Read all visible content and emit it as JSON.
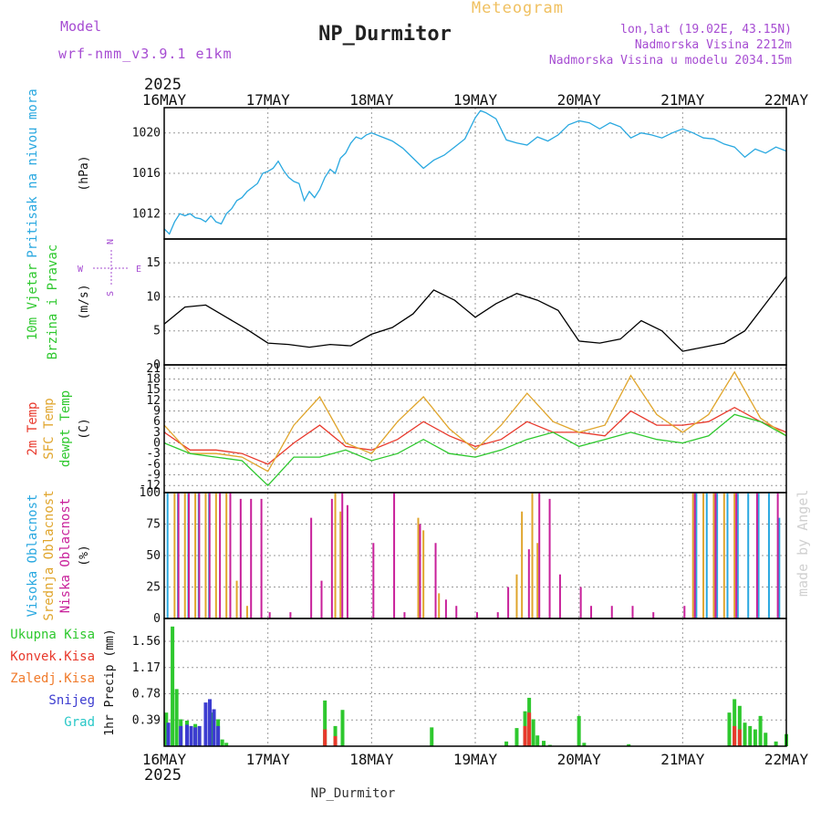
{
  "header": {
    "model_label": "Model",
    "model_name": "wrf-nmm_v3.9.1 e1km",
    "title": "NP_Durmitor",
    "subtitle": "Meteogram",
    "lonlat": "lon,lat (19.02E, 43.15N)",
    "altitude": "Nadmorska Visina 2212m",
    "model_altitude": "Nadmorska Visina u modelu 2034.15m",
    "year_top": "2025",
    "year_bottom": "2025",
    "footer": "NP_Durmitor",
    "watermark": "made by Angel"
  },
  "colors": {
    "pressure": "#29a8e0",
    "temp2m": "#e8392c",
    "sfc": "#e0a52c",
    "dewpt": "#2ec82e",
    "high_cloud": "#29a8e0",
    "mid_cloud": "#e0a52c",
    "low_cloud": "#c8209a",
    "total_rain": "#2ec82e",
    "conv_rain": "#e8392c",
    "frz_rain": "#f07a2a",
    "snow": "#3c3cd0",
    "graupel": "#29c8c8",
    "purple_text": "#a64cd2",
    "orange_text": "#f0c060"
  },
  "chart_data": {
    "type": "meteogram",
    "x_ticks": [
      "16MAY",
      "17MAY",
      "18MAY",
      "19MAY",
      "20MAY",
      "21MAY",
      "22MAY"
    ],
    "panels": [
      {
        "id": "pressure",
        "ylabel_lines": [
          "Pritisak na nivou mora"
        ],
        "unit": "(hPa)",
        "yticks": [
          1012,
          1016,
          1020
        ],
        "ylim": [
          1009.5,
          1022.5
        ],
        "series": [
          {
            "name": "Pritisak na nivou mora",
            "color": "#29a8e0",
            "x": [
              0,
              0.05,
              0.1,
              0.15,
              0.2,
              0.25,
              0.3,
              0.35,
              0.4,
              0.45,
              0.5,
              0.55,
              0.6,
              0.65,
              0.7,
              0.75,
              0.8,
              0.85,
              0.9,
              0.95,
              1.0,
              1.05,
              1.1,
              1.15,
              1.2,
              1.25,
              1.3,
              1.35,
              1.4,
              1.45,
              1.5,
              1.55,
              1.6,
              1.65,
              1.7,
              1.75,
              1.8,
              1.85,
              1.9,
              1.95,
              2.0,
              2.1,
              2.2,
              2.3,
              2.4,
              2.5,
              2.6,
              2.7,
              2.8,
              2.9,
              3.0,
              3.05,
              3.1,
              3.2,
              3.3,
              3.4,
              3.5,
              3.6,
              3.7,
              3.8,
              3.9,
              4.0,
              4.1,
              4.2,
              4.3,
              4.4,
              4.5,
              4.6,
              4.7,
              4.8,
              4.9,
              5.0,
              5.1,
              5.2,
              5.3,
              5.4,
              5.5,
              5.6,
              5.7,
              5.8,
              5.9,
              6.0
            ],
            "y": [
              1010.5,
              1010.0,
              1011.2,
              1012.0,
              1011.8,
              1012.0,
              1011.6,
              1011.5,
              1011.2,
              1011.8,
              1011.2,
              1011.0,
              1012.0,
              1012.5,
              1013.3,
              1013.6,
              1014.2,
              1014.6,
              1015.0,
              1016.0,
              1016.2,
              1016.5,
              1017.2,
              1016.3,
              1015.6,
              1015.2,
              1015.0,
              1013.3,
              1014.2,
              1013.6,
              1014.4,
              1015.6,
              1016.4,
              1016.0,
              1017.5,
              1018.0,
              1019.0,
              1019.6,
              1019.4,
              1019.8,
              1020.0,
              1019.6,
              1019.2,
              1018.5,
              1017.5,
              1016.5,
              1017.3,
              1017.8,
              1018.6,
              1019.4,
              1021.5,
              1022.2,
              1022.0,
              1021.4,
              1019.3,
              1019.0,
              1018.8,
              1019.6,
              1019.2,
              1019.8,
              1020.8,
              1021.2,
              1021.0,
              1020.4,
              1021.0,
              1020.6,
              1019.5,
              1020.0,
              1019.8,
              1019.5,
              1020.0,
              1020.4,
              1020.0,
              1019.5,
              1019.4,
              1018.9,
              1018.6,
              1017.6,
              1018.4,
              1018.0,
              1018.6,
              1018.2
            ]
          }
        ]
      },
      {
        "id": "wind",
        "ylabel_lines": [
          "10m Vjetar",
          "Brzina i Pravac"
        ],
        "unit": "(m/s)",
        "compass": {
          "n": "N",
          "s": "S",
          "w": "W",
          "e": "E"
        },
        "yticks": [
          0,
          5,
          10,
          15
        ],
        "ylim": [
          0,
          18.5
        ],
        "series": [
          {
            "name": "10m Vjetar",
            "color": "#000000",
            "x": [
              0,
              0.2,
              0.4,
              0.6,
              0.8,
              1.0,
              1.2,
              1.4,
              1.6,
              1.8,
              2.0,
              2.2,
              2.4,
              2.6,
              2.8,
              3.0,
              3.2,
              3.4,
              3.6,
              3.8,
              4.0,
              4.2,
              4.4,
              4.6,
              4.8,
              5.0,
              5.2,
              5.4,
              5.6,
              5.8,
              6.0
            ],
            "y": [
              6.0,
              8.5,
              8.8,
              7.0,
              5.2,
              3.2,
              3.0,
              2.6,
              3.0,
              2.8,
              4.5,
              5.5,
              7.5,
              11.0,
              9.5,
              7.0,
              9.0,
              10.5,
              9.5,
              8.0,
              3.5,
              3.2,
              3.8,
              6.5,
              5.0,
              2.0,
              2.6,
              3.2,
              5.0,
              9.0,
              13.0
            ]
          }
        ]
      },
      {
        "id": "temp",
        "ylabel_lines": [
          "2m Temp",
          "SFC Temp",
          "dewpt Temp"
        ],
        "unit": "(C)",
        "yticks": [
          -12,
          -9,
          -6,
          -3,
          0,
          3,
          6,
          9,
          12,
          15,
          18,
          21
        ],
        "ylim": [
          -14,
          22
        ],
        "series": [
          {
            "name": "2m Temp",
            "color": "#e8392c",
            "x": [
              0,
              0.25,
              0.5,
              0.75,
              1.0,
              1.25,
              1.5,
              1.75,
              2.0,
              2.25,
              2.5,
              2.75,
              3.0,
              3.25,
              3.5,
              3.75,
              4.0,
              4.25,
              4.5,
              4.75,
              5.0,
              5.25,
              5.5,
              5.75,
              6.0
            ],
            "y": [
              3,
              -2,
              -2,
              -3,
              -6,
              0,
              5,
              -1,
              -2,
              1,
              6,
              2,
              -1,
              1,
              6,
              3,
              3,
              2,
              9,
              5,
              5,
              6,
              10,
              6,
              3
            ]
          },
          {
            "name": "SFC Temp",
            "color": "#e0a52c",
            "x": [
              0,
              0.25,
              0.5,
              0.75,
              1.0,
              1.25,
              1.5,
              1.75,
              2.0,
              2.25,
              2.5,
              2.75,
              3.0,
              3.25,
              3.5,
              3.75,
              4.0,
              4.25,
              4.5,
              4.75,
              5.0,
              5.25,
              5.5,
              5.75,
              6.0
            ],
            "y": [
              5,
              -3,
              -3,
              -4,
              -8,
              5,
              13,
              0,
              -3,
              6,
              13,
              4,
              -2,
              5,
              14,
              6,
              3,
              5,
              19,
              8,
              3,
              8,
              20,
              7,
              2
            ]
          },
          {
            "name": "dewpt Temp",
            "color": "#2ec82e",
            "x": [
              0,
              0.25,
              0.5,
              0.75,
              1.0,
              1.25,
              1.5,
              1.75,
              2.0,
              2.25,
              2.5,
              2.75,
              3.0,
              3.25,
              3.5,
              3.75,
              4.0,
              4.25,
              4.5,
              4.75,
              5.0,
              5.25,
              5.5,
              5.75,
              6.0
            ],
            "y": [
              0,
              -3,
              -4,
              -5,
              -12,
              -4,
              -4,
              -2,
              -5,
              -3,
              1,
              -3,
              -4,
              -2,
              1,
              3,
              -1,
              1,
              3,
              1,
              0,
              2,
              8,
              6,
              2
            ]
          }
        ]
      },
      {
        "id": "cloud",
        "ylabel_lines": [
          "Visoka Oblacnost",
          "Srednja Oblacnost",
          "Niska Oblacnost"
        ],
        "unit": "(%)",
        "yticks": [
          0,
          25,
          50,
          75,
          100
        ],
        "ylim": [
          0,
          100
        ],
        "series": [
          {
            "name": "Visoka Oblacnost",
            "color": "#29a8e0",
            "x": [
              0.05,
              0.15,
              0.25,
              0.35,
              0.45,
              5.15,
              5.25,
              5.35,
              5.45,
              5.55,
              5.65,
              5.75,
              5.85,
              5.95
            ],
            "y": [
              100,
              100,
              100,
              100,
              100,
              100,
              100,
              100,
              100,
              100,
              100,
              100,
              100,
              80
            ]
          },
          {
            "name": "Srednja Oblacnost",
            "color": "#e0a52c",
            "x": [
              0.1,
              0.2,
              0.3,
              0.4,
              0.5,
              0.6,
              0.7,
              0.8,
              1.65,
              1.7,
              2.45,
              2.5,
              2.65,
              3.4,
              3.45,
              3.55,
              3.6,
              5.1,
              5.2,
              5.3,
              5.4,
              5.5
            ],
            "y": [
              100,
              100,
              100,
              100,
              100,
              100,
              30,
              10,
              100,
              85,
              80,
              70,
              20,
              35,
              85,
              100,
              60,
              100,
              100,
              100,
              100,
              100
            ]
          },
          {
            "name": "Niska Oblacnost",
            "color": "#c8209a",
            "x": [
              0.12,
              0.22,
              0.32,
              0.42,
              0.52,
              0.62,
              0.72,
              0.82,
              0.92,
              1.0,
              1.2,
              1.4,
              1.5,
              1.6,
              1.7,
              1.75,
              2.0,
              2.2,
              2.3,
              2.45,
              2.6,
              2.7,
              2.8,
              3.0,
              3.2,
              3.3,
              3.5,
              3.6,
              3.7,
              3.8,
              4.0,
              4.1,
              4.3,
              4.5,
              4.7,
              5.0,
              5.1,
              5.3,
              5.5,
              5.7,
              5.9
            ],
            "y": [
              100,
              100,
              100,
              100,
              100,
              100,
              95,
              95,
              95,
              5,
              5,
              80,
              30,
              95,
              100,
              90,
              60,
              100,
              5,
              75,
              60,
              15,
              10,
              5,
              5,
              25,
              55,
              100,
              95,
              35,
              25,
              10,
              10,
              10,
              5,
              10,
              100,
              100,
              100,
              100,
              100
            ]
          }
        ]
      },
      {
        "id": "precip",
        "legend": [
          "Ukupna Kisa",
          "Konvek.Kisa",
          "Zaledj.Kisa",
          "Snijeg",
          "Grad"
        ],
        "unit": "1hr Precip (mm)",
        "yticks": [
          0.39,
          0.78,
          1.17,
          1.56
        ],
        "ylim": [
          0,
          1.9
        ],
        "series": [
          {
            "name": "Ukupna Kisa",
            "color": "#2ec82e",
            "x": [
              0.02,
              0.08,
              0.12,
              0.16,
              0.22,
              0.3,
              0.45,
              0.52,
              0.56,
              0.6,
              1.55,
              1.65,
              1.72,
              2.58,
              3.3,
              3.4,
              3.48,
              3.52,
              3.56,
              3.6,
              3.66,
              3.72,
              4.0,
              4.05,
              4.48,
              5.45,
              5.5,
              5.55,
              5.6,
              5.65,
              5.7,
              5.75,
              5.8,
              5.9,
              6.0
            ],
            "y": [
              0.5,
              1.78,
              0.85,
              0.4,
              0.38,
              0.33,
              0.5,
              0.4,
              0.1,
              0.05,
              0.68,
              0.3,
              0.54,
              0.28,
              0.07,
              0.27,
              0.52,
              0.72,
              0.4,
              0.16,
              0.08,
              0.02,
              0.45,
              0.05,
              0.03,
              0.5,
              0.7,
              0.6,
              0.35,
              0.3,
              0.25,
              0.45,
              0.2,
              0.07,
              0.18
            ]
          },
          {
            "name": "Konvek.Kisa",
            "color": "#e8392c",
            "x": [
              1.55,
              1.65,
              3.48,
              3.52,
              5.5,
              5.55
            ],
            "y": [
              0.25,
              0.15,
              0.3,
              0.5,
              0.3,
              0.25
            ]
          },
          {
            "name": "Snijeg",
            "color": "#3c3cd0",
            "x": [
              0.04,
              0.16,
              0.22,
              0.26,
              0.3,
              0.34,
              0.4,
              0.44,
              0.48,
              0.52
            ],
            "y": [
              0.35,
              0.3,
              0.32,
              0.3,
              0.28,
              0.3,
              0.65,
              0.7,
              0.55,
              0.3
            ]
          }
        ]
      }
    ]
  }
}
